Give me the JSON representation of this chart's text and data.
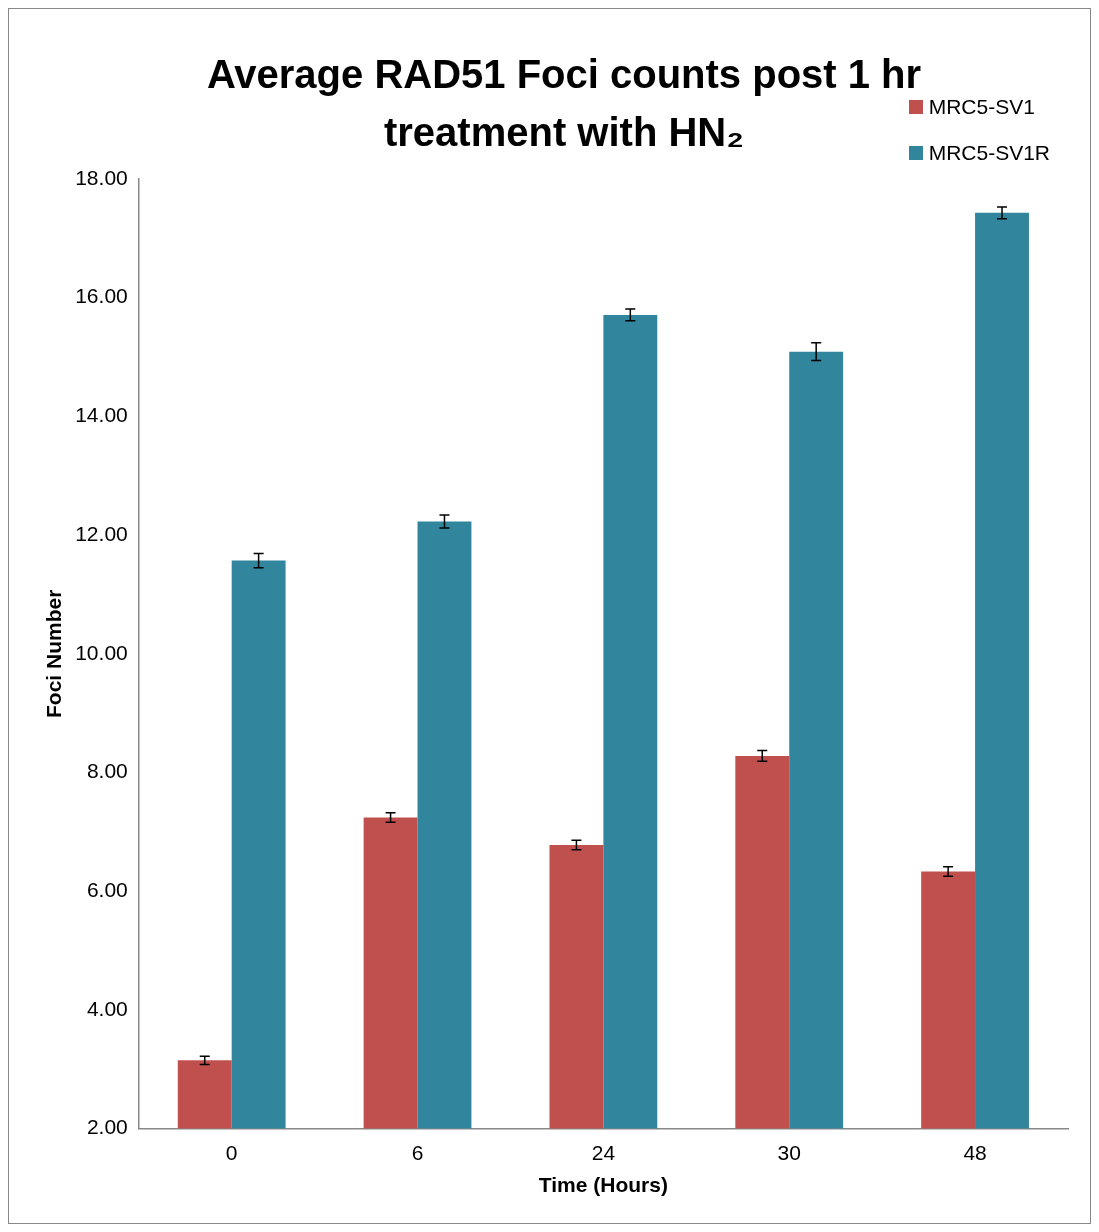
{
  "chart_data": {
    "type": "bar",
    "title": "Average RAD51 Foci counts post 1 hr treatment with HN₂",
    "xlabel": "Time (Hours)",
    "ylabel": "Foci Number",
    "categories": [
      "0",
      "6",
      "24",
      "30",
      "48"
    ],
    "series": [
      {
        "name": "MRC5-SV1",
        "color": "#c0504d",
        "values": [
          3.15,
          7.24,
          6.78,
          8.28,
          6.33
        ],
        "errors": [
          0.07,
          0.08,
          0.08,
          0.09,
          0.08
        ]
      },
      {
        "name": "MRC5-SV1R",
        "color": "#31859c",
        "values": [
          11.57,
          12.23,
          15.71,
          15.09,
          17.43
        ],
        "errors": [
          0.12,
          0.11,
          0.1,
          0.15,
          0.1
        ]
      }
    ],
    "ylim": [
      2,
      18
    ],
    "yticks": [
      {
        "value": 2,
        "label": "2.00"
      },
      {
        "value": 4,
        "label": "4.00"
      },
      {
        "value": 6,
        "label": "6.00"
      },
      {
        "value": 8,
        "label": "8.00"
      },
      {
        "value": 10,
        "label": "10.00"
      },
      {
        "value": 12,
        "label": "12.00"
      },
      {
        "value": 14,
        "label": "14.00"
      },
      {
        "value": 16,
        "label": "16.00"
      },
      {
        "value": 18,
        "label": "18.00"
      }
    ],
    "grid": false,
    "legend": "top right"
  }
}
